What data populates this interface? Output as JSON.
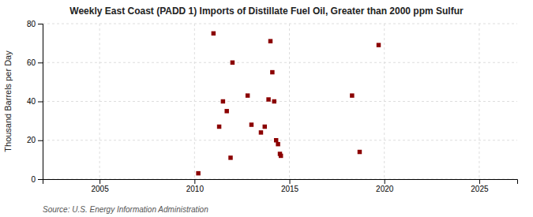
{
  "chart_data": {
    "type": "scatter",
    "title": "Weekly East Coast (PADD 1) Imports of Distillate Fuel Oil, Greater than 2000 ppm Sulfur",
    "ylabel": "Thousand Barrels per Day",
    "annotations": [
      "Source: U.S. Energy Information Administration"
    ],
    "color": "#8b0000",
    "marker": "square",
    "grid": true,
    "xlim": [
      2002,
      2027
    ],
    "ylim": [
      0,
      80
    ],
    "xticks": [
      2005,
      2010,
      2015,
      2020,
      2025
    ],
    "yticks": [
      0,
      20,
      40,
      60,
      80
    ],
    "x": [
      2010.2,
      2011.0,
      2011.3,
      2011.5,
      2011.7,
      2011.9,
      2012.0,
      2012.8,
      2013.0,
      2013.5,
      2013.7,
      2013.9,
      2014.0,
      2014.1,
      2014.2,
      2014.3,
      2014.4,
      2014.5,
      2014.55,
      2018.3,
      2018.7,
      2019.7
    ],
    "values": [
      3,
      75,
      27,
      40,
      35,
      11,
      60,
      43,
      28,
      24,
      27,
      41,
      71,
      55,
      40,
      20,
      18,
      13,
      12,
      43,
      14,
      69
    ]
  }
}
